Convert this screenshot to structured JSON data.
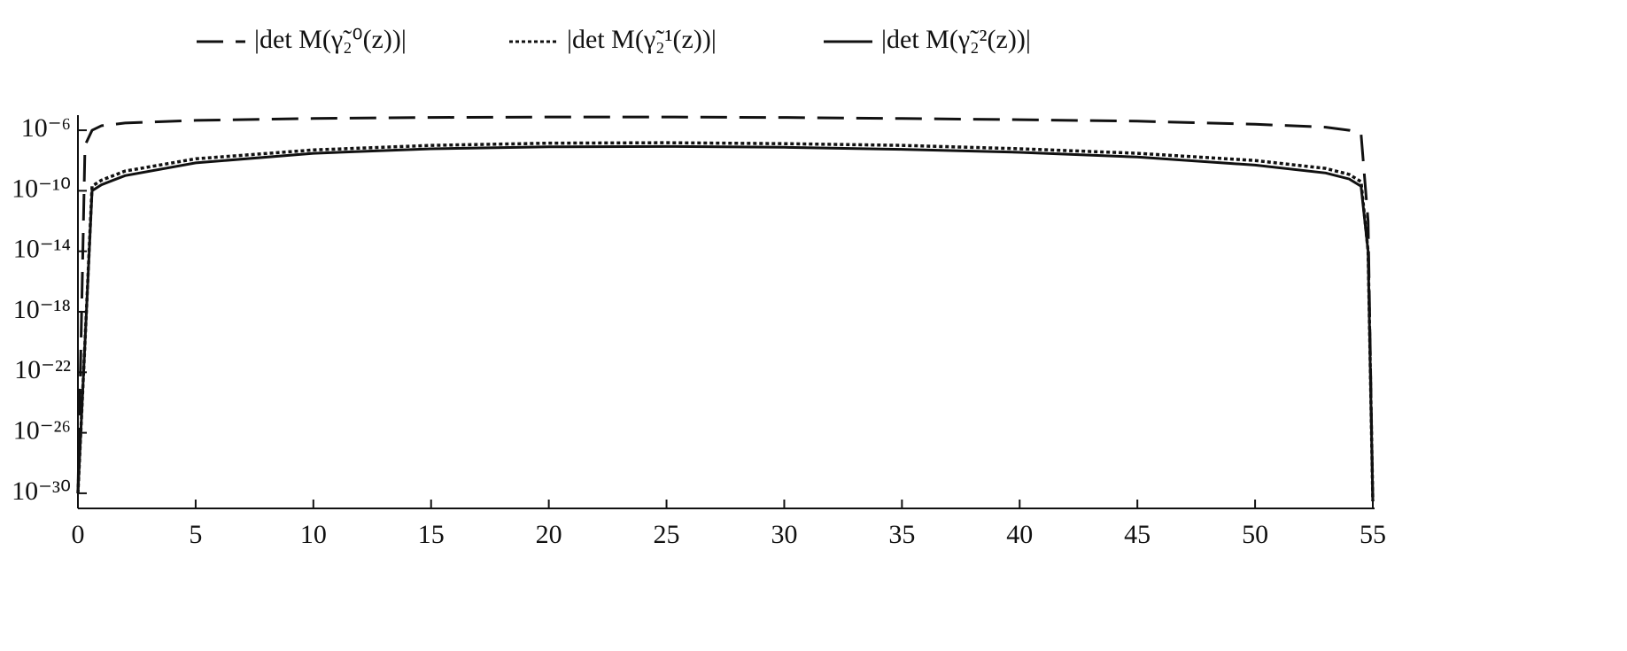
{
  "chart_data": {
    "type": "line",
    "log_y": true,
    "x": [
      0,
      0.3,
      0.6,
      1,
      2,
      5,
      10,
      15,
      20,
      25,
      30,
      35,
      40,
      45,
      50,
      53,
      54,
      54.5,
      54.8,
      55
    ],
    "series": [
      {
        "name": "|det M(γ̃₂⁰(z))|",
        "color": "#111111",
        "dash": "dashed",
        "values": [
          1e-30,
          1e-07,
          1e-06,
          2e-06,
          3e-06,
          4.5e-06,
          6e-06,
          7e-06,
          7.5e-06,
          7.5e-06,
          7e-06,
          6e-06,
          5e-06,
          4e-06,
          2.5e-06,
          1.6e-06,
          1e-06,
          6e-07,
          1e-12,
          3e-31
        ]
      },
      {
        "name": "|det M(γ̃₂¹(z))|",
        "color": "#111111",
        "dash": "dotted",
        "values": [
          1e-30,
          1e-20,
          2e-10,
          5e-10,
          2e-09,
          1.3e-08,
          5e-08,
          1e-07,
          1.4e-07,
          1.5e-07,
          1.3e-07,
          1e-07,
          6e-08,
          3e-08,
          1e-08,
          3e-09,
          1.2e-09,
          4e-10,
          1e-14,
          3e-31
        ]
      },
      {
        "name": "|det M(γ̃₂²(z))|",
        "color": "#111111",
        "dash": "solid",
        "values": [
          1e-30,
          1e-20,
          1e-10,
          2.5e-10,
          1e-09,
          7e-09,
          3e-08,
          6e-08,
          8e-08,
          8.5e-08,
          7.5e-08,
          5.5e-08,
          3.5e-08,
          1.7e-08,
          5e-09,
          1.5e-09,
          6e-10,
          2e-10,
          1e-14,
          3e-31
        ]
      }
    ],
    "xlim": [
      0,
      55
    ],
    "xticks": [
      0,
      5,
      10,
      15,
      20,
      25,
      30,
      35,
      40,
      45,
      50,
      55
    ],
    "ylim": [
      1e-31,
      1e-05
    ],
    "yticks": [
      {
        "value": 1e-30,
        "label": "10⁻³⁰"
      },
      {
        "value": 1e-26,
        "label": "10⁻²⁶"
      },
      {
        "value": 1e-22,
        "label": "10⁻²²"
      },
      {
        "value": 1e-18,
        "label": "10⁻¹⁸"
      },
      {
        "value": 1e-14,
        "label": "10⁻¹⁴"
      },
      {
        "value": 1e-10,
        "label": "10⁻¹⁰"
      },
      {
        "value": 1e-06,
        "label": "10⁻⁶"
      }
    ],
    "legend": "top"
  }
}
